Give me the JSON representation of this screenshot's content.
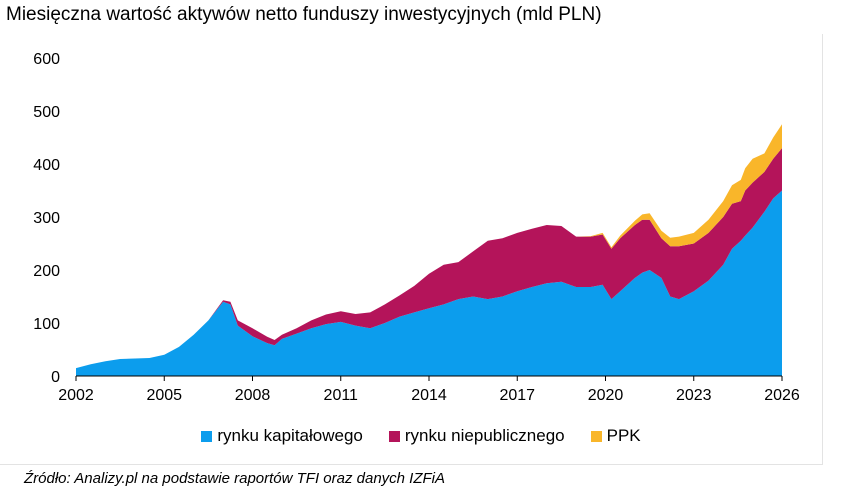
{
  "title": "Miesięczna wartość aktywów netto funduszy inwestycyjnych (mld PLN)",
  "source": "Źródło: Analizy.pl na podstawie raportów TFI oraz danych IZFiA",
  "colors": {
    "kapitalowy": "#0c9ded",
    "niepubliczny": "#b4145a",
    "ppk": "#f9b62a"
  },
  "chart_data": {
    "type": "area",
    "stacked": true,
    "title": "Miesięczna wartość aktywów netto funduszy inwestycyjnych (mld PLN)",
    "xlim": [
      2002,
      2026
    ],
    "ylim": [
      0,
      600
    ],
    "x_ticks": [
      "2002",
      "2005",
      "2008",
      "2011",
      "2014",
      "2017",
      "2020",
      "2023",
      "2026"
    ],
    "y_ticks": [
      "0",
      "100",
      "200",
      "300",
      "400",
      "500",
      "600"
    ],
    "grid": false,
    "legend_position": "bottom",
    "x": [
      2002.0,
      2002.5,
      2003.0,
      2003.5,
      2004.0,
      2004.5,
      2005.0,
      2005.5,
      2006.0,
      2006.5,
      2007.0,
      2007.25,
      2007.5,
      2008.0,
      2008.5,
      2008.75,
      2009.0,
      2009.5,
      2010.0,
      2010.5,
      2011.0,
      2011.5,
      2012.0,
      2012.5,
      2013.0,
      2013.5,
      2014.0,
      2014.5,
      2015.0,
      2015.5,
      2016.0,
      2016.5,
      2017.0,
      2017.5,
      2018.0,
      2018.5,
      2019.0,
      2019.5,
      2019.9,
      2020.2,
      2020.5,
      2021.0,
      2021.25,
      2021.5,
      2021.9,
      2022.2,
      2022.5,
      2023.0,
      2023.5,
      2024.0,
      2024.3,
      2024.6,
      2024.75,
      2025.0,
      2025.4,
      2025.7,
      2026.0
    ],
    "series": [
      {
        "name": "rynku kapitałowego",
        "values": [
          15,
          22,
          28,
          32,
          33,
          34,
          40,
          55,
          78,
          105,
          140,
          135,
          95,
          75,
          62,
          58,
          70,
          80,
          90,
          98,
          102,
          95,
          90,
          100,
          112,
          120,
          128,
          135,
          145,
          150,
          145,
          150,
          160,
          168,
          175,
          178,
          168,
          168,
          172,
          145,
          160,
          185,
          195,
          200,
          185,
          150,
          145,
          160,
          180,
          210,
          240,
          255,
          265,
          280,
          310,
          335,
          350
        ]
      },
      {
        "name": "rynku niepublicznego",
        "values": [
          0,
          0,
          0,
          0,
          0,
          0,
          0,
          0,
          0,
          0,
          3,
          5,
          10,
          15,
          12,
          10,
          8,
          10,
          15,
          18,
          20,
          22,
          30,
          35,
          40,
          50,
          65,
          75,
          70,
          85,
          110,
          110,
          110,
          110,
          110,
          105,
          95,
          95,
          95,
          95,
          100,
          100,
          100,
          95,
          75,
          95,
          100,
          90,
          90,
          90,
          85,
          75,
          85,
          85,
          75,
          75,
          80
        ]
      },
      {
        "name": "PPK",
        "values": [
          0,
          0,
          0,
          0,
          0,
          0,
          0,
          0,
          0,
          0,
          0,
          0,
          0,
          0,
          0,
          0,
          0,
          0,
          0,
          0,
          0,
          0,
          0,
          0,
          0,
          0,
          0,
          0,
          0,
          0,
          0,
          0,
          0,
          0,
          0,
          0,
          0,
          1,
          3,
          3,
          5,
          8,
          10,
          12,
          14,
          16,
          18,
          20,
          25,
          30,
          35,
          40,
          42,
          45,
          35,
          40,
          45
        ]
      }
    ]
  }
}
